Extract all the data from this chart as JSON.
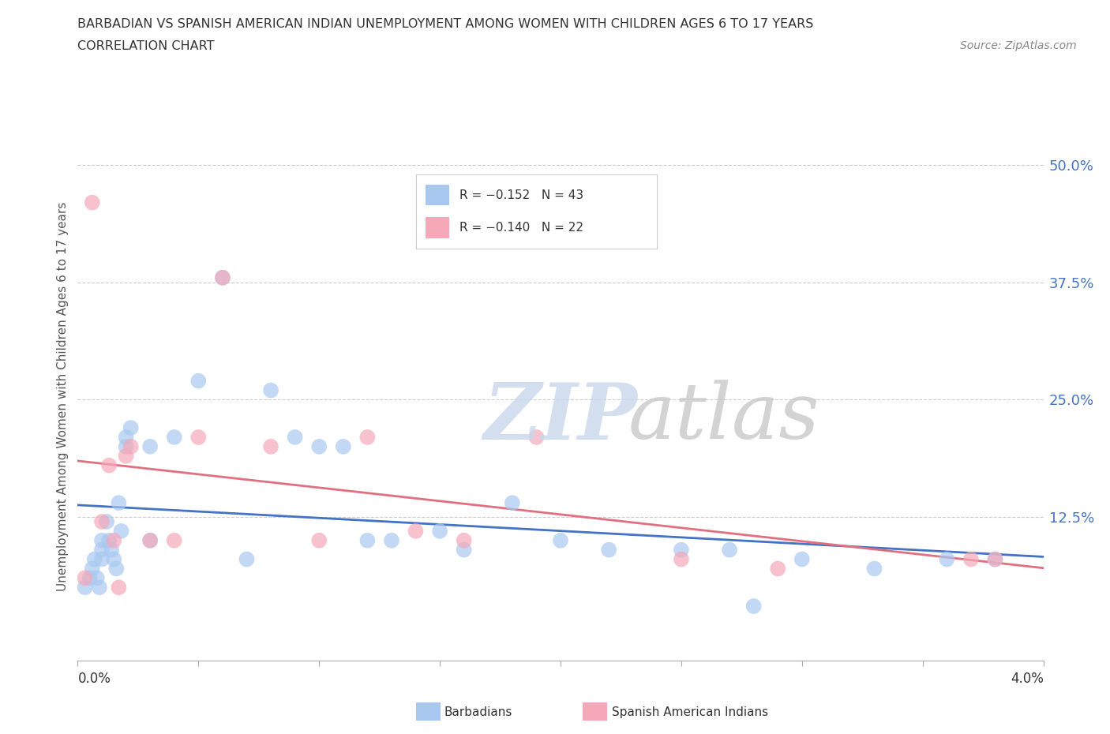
{
  "title_line1": "BARBADIAN VS SPANISH AMERICAN INDIAN UNEMPLOYMENT AMONG WOMEN WITH CHILDREN AGES 6 TO 17 YEARS",
  "title_line2": "CORRELATION CHART",
  "source_text": "Source: ZipAtlas.com",
  "ylabel": "Unemployment Among Women with Children Ages 6 to 17 years",
  "ytick_vals": [
    0.125,
    0.25,
    0.375,
    0.5
  ],
  "ytick_labels": [
    "12.5%",
    "25.0%",
    "37.5%",
    "50.0%"
  ],
  "barbadian_color": "#a8c8f0",
  "spanish_color": "#f4a8b8",
  "barbadian_line_color": "#4472c4",
  "spanish_line_color": "#e07080",
  "x_min": 0.0,
  "x_max": 0.04,
  "y_min": -0.028,
  "y_max": 0.535,
  "barbadian_x": [
    0.0003,
    0.0005,
    0.0006,
    0.0007,
    0.0008,
    0.0009,
    0.001,
    0.001,
    0.001,
    0.0012,
    0.0013,
    0.0014,
    0.0015,
    0.0016,
    0.0017,
    0.0018,
    0.002,
    0.002,
    0.0022,
    0.003,
    0.003,
    0.004,
    0.005,
    0.006,
    0.007,
    0.008,
    0.009,
    0.01,
    0.011,
    0.012,
    0.013,
    0.015,
    0.016,
    0.018,
    0.02,
    0.022,
    0.025,
    0.027,
    0.028,
    0.03,
    0.033,
    0.036,
    0.038
  ],
  "barbadian_y": [
    0.05,
    0.06,
    0.07,
    0.08,
    0.06,
    0.05,
    0.1,
    0.09,
    0.08,
    0.12,
    0.1,
    0.09,
    0.08,
    0.07,
    0.14,
    0.11,
    0.2,
    0.21,
    0.22,
    0.2,
    0.1,
    0.21,
    0.27,
    0.38,
    0.08,
    0.26,
    0.21,
    0.2,
    0.2,
    0.1,
    0.1,
    0.11,
    0.09,
    0.14,
    0.1,
    0.09,
    0.09,
    0.09,
    0.03,
    0.08,
    0.07,
    0.08,
    0.08
  ],
  "spanish_x": [
    0.0003,
    0.0006,
    0.001,
    0.0013,
    0.0015,
    0.0017,
    0.002,
    0.0022,
    0.003,
    0.004,
    0.005,
    0.006,
    0.008,
    0.01,
    0.012,
    0.014,
    0.016,
    0.019,
    0.025,
    0.029,
    0.037,
    0.038
  ],
  "spanish_y": [
    0.06,
    0.46,
    0.12,
    0.18,
    0.1,
    0.05,
    0.19,
    0.2,
    0.1,
    0.1,
    0.21,
    0.38,
    0.2,
    0.1,
    0.21,
    0.11,
    0.1,
    0.21,
    0.08,
    0.07,
    0.08,
    0.08
  ],
  "legend_text1": "R = -0.152  N = 43",
  "legend_text2": "R = -0.140  N = 22"
}
